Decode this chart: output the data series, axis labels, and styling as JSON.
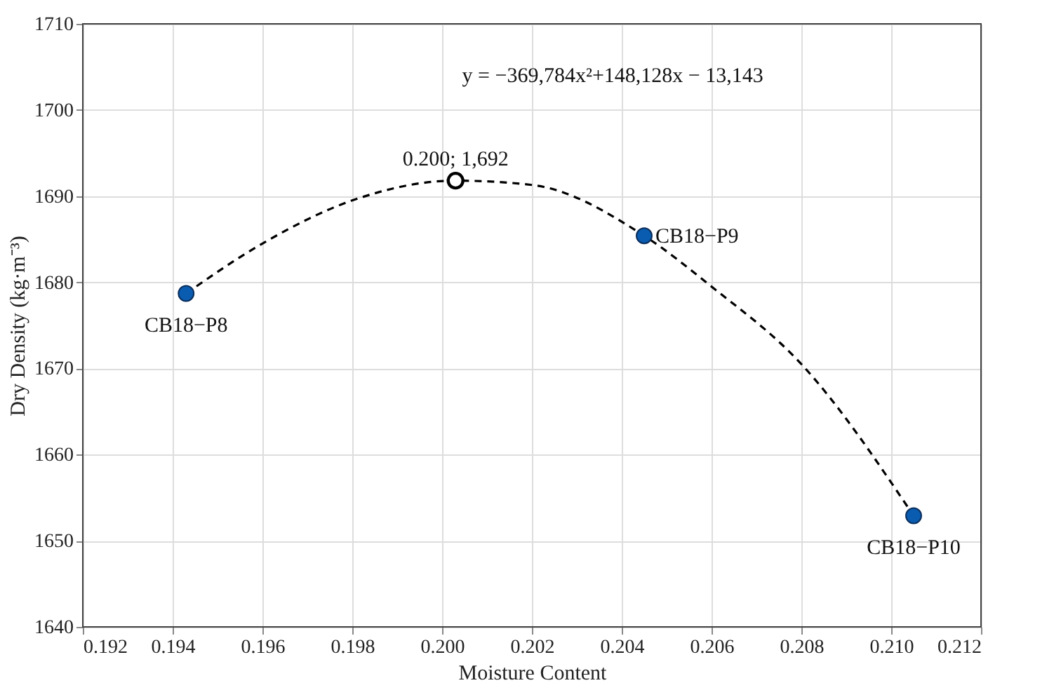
{
  "chart_data": {
    "type": "scatter",
    "xlabel": "Moisture Content",
    "ylabel": "Dry Density (kg·m⁻³)",
    "xlim": [
      0.192,
      0.212
    ],
    "xticks": [
      0.192,
      0.194,
      0.196,
      0.198,
      {
        "value": 0.2,
        "label": "0.200"
      },
      0.202,
      0.204,
      0.206,
      0.208,
      {
        "value": 0.21,
        "label": "0.210"
      },
      0.212
    ],
    "ylim": [
      1640,
      1710
    ],
    "yticks": [
      1640,
      1650,
      1660,
      1670,
      1680,
      1690,
      1700,
      1710
    ],
    "grid": true,
    "series": [
      {
        "type": "line",
        "color": "#000000",
        "line_style": "dashed",
        "marker": "none",
        "x": [
          0.1943,
          0.196,
          0.198,
          0.2003,
          0.202,
          0.2045,
          0.206,
          0.208,
          0.2105
        ],
        "values": [
          1678.7,
          1684.5,
          1689.5,
          1691.8,
          1691.3,
          1685.4,
          1679.5,
          1670.5,
          1652.9
        ]
      },
      {
        "color": "#0a5cb0",
        "marker": "circle",
        "x": [
          0.1943,
          0.2045,
          0.2105
        ],
        "values": [
          1678.7,
          1685.4,
          1652.9
        ]
      },
      {
        "color": "#000000",
        "marker": "circle",
        "x": [
          0.2003
        ],
        "values": [
          1691.8
        ]
      }
    ],
    "annotations": [
      {
        "text": "CB18−P8",
        "x": 0.1943,
        "y": 1678.7
      },
      {
        "text": "0.200; 1,692",
        "x": 0.2003,
        "y": 1691.8
      },
      {
        "text": "CB18−P9",
        "x": 0.2045,
        "y": 1685.4
      },
      {
        "text": "CB18−P10",
        "x": 0.2105,
        "y": 1652.9
      },
      "y = −369,784x²+148,128x − 13,143"
    ]
  }
}
